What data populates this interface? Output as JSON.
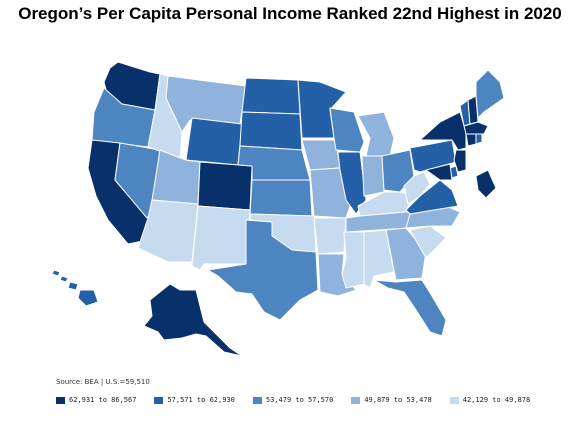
{
  "title": "Oregon’s Per Capita Personal Income Ranked 22nd Highest in 2020",
  "source": {
    "label": "Source: BEA",
    "separator": "|",
    "us_value": "U.S.=59,510"
  },
  "legend": [
    {
      "label": "62,931 to 86,567",
      "color": "#08306b"
    },
    {
      "label": "57,571 to 62,930",
      "color": "#2460a7"
    },
    {
      "label": "53,479 to 57,570",
      "color": "#4d85c0"
    },
    {
      "label": "49,879 to 53,478",
      "color": "#8fb3dc"
    },
    {
      "label": "42,129 to 49,878",
      "color": "#c6dbef"
    }
  ],
  "map": {
    "states": [
      {
        "id": "WA",
        "bin": 0
      },
      {
        "id": "OR",
        "bin": 2
      },
      {
        "id": "CA",
        "bin": 0
      },
      {
        "id": "NV",
        "bin": 2
      },
      {
        "id": "ID",
        "bin": 4
      },
      {
        "id": "MT",
        "bin": 3
      },
      {
        "id": "WY",
        "bin": 1
      },
      {
        "id": "UT",
        "bin": 3
      },
      {
        "id": "AZ",
        "bin": 4
      },
      {
        "id": "CO",
        "bin": 0
      },
      {
        "id": "NM",
        "bin": 4
      },
      {
        "id": "ND",
        "bin": 1
      },
      {
        "id": "SD",
        "bin": 1
      },
      {
        "id": "NE",
        "bin": 2
      },
      {
        "id": "KS",
        "bin": 2
      },
      {
        "id": "OK",
        "bin": 4
      },
      {
        "id": "TX",
        "bin": 2
      },
      {
        "id": "MN",
        "bin": 1
      },
      {
        "id": "IA",
        "bin": 3
      },
      {
        "id": "MO",
        "bin": 3
      },
      {
        "id": "AR",
        "bin": 4
      },
      {
        "id": "LA",
        "bin": 3
      },
      {
        "id": "WI",
        "bin": 2
      },
      {
        "id": "IL",
        "bin": 1
      },
      {
        "id": "MI",
        "bin": 3
      },
      {
        "id": "IN",
        "bin": 3
      },
      {
        "id": "OH",
        "bin": 2
      },
      {
        "id": "KY",
        "bin": 4
      },
      {
        "id": "TN",
        "bin": 3
      },
      {
        "id": "MS",
        "bin": 4
      },
      {
        "id": "AL",
        "bin": 4
      },
      {
        "id": "GA",
        "bin": 3
      },
      {
        "id": "FL",
        "bin": 2
      },
      {
        "id": "SC",
        "bin": 4
      },
      {
        "id": "NC",
        "bin": 3
      },
      {
        "id": "VA",
        "bin": 1
      },
      {
        "id": "WV",
        "bin": 4
      },
      {
        "id": "PA",
        "bin": 1
      },
      {
        "id": "NY",
        "bin": 0
      },
      {
        "id": "VT",
        "bin": 1
      },
      {
        "id": "NH",
        "bin": 0
      },
      {
        "id": "ME",
        "bin": 2
      },
      {
        "id": "MA",
        "bin": 0
      },
      {
        "id": "CT",
        "bin": 0
      },
      {
        "id": "RI",
        "bin": 1
      },
      {
        "id": "NJ",
        "bin": 0
      },
      {
        "id": "DE",
        "bin": 1
      },
      {
        "id": "MD",
        "bin": 0
      },
      {
        "id": "DC",
        "bin": 0
      },
      {
        "id": "AK",
        "bin": 0
      },
      {
        "id": "HI",
        "bin": 1
      }
    ]
  }
}
